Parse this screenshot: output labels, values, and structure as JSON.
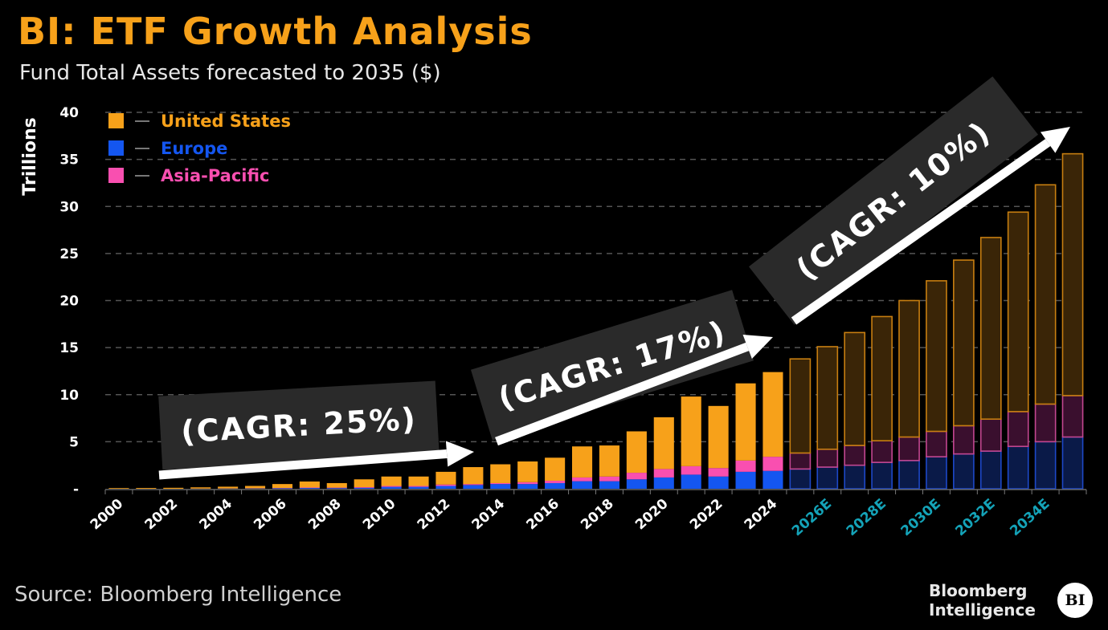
{
  "header": {
    "title": "BI: ETF Growth Analysis",
    "subtitle": "Fund Total Assets forecasted to 2035 ($)"
  },
  "footer": {
    "source": "Source: Bloomberg Intelligence",
    "logo_line1": "Bloomberg",
    "logo_line2": "Intelligence",
    "logo_badge": "BI"
  },
  "chart_data": {
    "type": "bar",
    "stacked": true,
    "title": "BI: ETF Growth Analysis",
    "subtitle": "Fund Total Assets forecasted to 2035 ($)",
    "ylabel": "Trillions",
    "ylim": [
      0,
      40
    ],
    "yticks": [
      {
        "v": 0,
        "label": "-"
      },
      {
        "v": 5,
        "label": "5"
      },
      {
        "v": 10,
        "label": "10"
      },
      {
        "v": 15,
        "label": "15"
      },
      {
        "v": 20,
        "label": "20"
      },
      {
        "v": 25,
        "label": "25"
      },
      {
        "v": 30,
        "label": "30"
      },
      {
        "v": 35,
        "label": "35"
      },
      {
        "v": 40,
        "label": "40"
      }
    ],
    "grid": true,
    "legend_position": "top-left",
    "categories": [
      "2000",
      "2001",
      "2002",
      "2003",
      "2004",
      "2005",
      "2006",
      "2007",
      "2008",
      "2009",
      "2010",
      "2011",
      "2012",
      "2013",
      "2014",
      "2015",
      "2016",
      "2017",
      "2018",
      "2019",
      "2020",
      "2021",
      "2022",
      "2023",
      "2024",
      "2025E",
      "2026E",
      "2027E",
      "2028E",
      "2029E",
      "2030E",
      "2031E",
      "2032E",
      "2033E",
      "2034E",
      "2035E"
    ],
    "xtick_labels": [
      "2000",
      "2002",
      "2004",
      "2006",
      "2008",
      "2010",
      "2012",
      "2014",
      "2016",
      "2018",
      "2020",
      "2022",
      "2024",
      "2026E",
      "2028E",
      "2030E",
      "2032E",
      "2034E"
    ],
    "forecast_from": "2025E",
    "series": [
      {
        "name": "Europe",
        "color": "#1456f0",
        "forecast_fill": "#0a1a48",
        "forecast_stroke": "#1d48c8",
        "values": [
          0,
          0,
          0,
          0.01,
          0.02,
          0.03,
          0.05,
          0.08,
          0.07,
          0.1,
          0.2,
          0.2,
          0.3,
          0.4,
          0.5,
          0.5,
          0.6,
          0.8,
          0.8,
          1.0,
          1.2,
          1.5,
          1.3,
          1.8,
          1.9,
          2.1,
          2.3,
          2.5,
          2.8,
          3.0,
          3.4,
          3.7,
          4.0,
          4.5,
          5.0,
          5.5
        ]
      },
      {
        "name": "Asia-Pacific",
        "color": "#f94fb0",
        "forecast_fill": "#3a0f2e",
        "forecast_stroke": "#c24690",
        "values": [
          0,
          0,
          0,
          0.01,
          0.01,
          0.02,
          0.03,
          0.05,
          0.05,
          0.07,
          0.1,
          0.1,
          0.15,
          0.1,
          0.1,
          0.2,
          0.25,
          0.4,
          0.5,
          0.7,
          0.9,
          0.9,
          0.9,
          1.2,
          1.5,
          1.7,
          1.9,
          2.1,
          2.3,
          2.5,
          2.7,
          3.0,
          3.4,
          3.7,
          4.0,
          4.4
        ]
      },
      {
        "name": "United States",
        "color": "#f7a11a",
        "forecast_fill": "#3a2507",
        "forecast_stroke": "#c77e10",
        "values": [
          0.07,
          0.08,
          0.1,
          0.13,
          0.19,
          0.25,
          0.42,
          0.64,
          0.48,
          0.83,
          1.0,
          1.0,
          1.35,
          1.8,
          2.0,
          2.2,
          2.45,
          3.3,
          3.3,
          4.4,
          5.5,
          7.4,
          6.6,
          8.2,
          9.0,
          10.0,
          10.9,
          12.0,
          13.2,
          14.5,
          16.0,
          17.6,
          19.3,
          21.2,
          23.3,
          25.7
        ]
      }
    ],
    "legend": [
      {
        "name": "United States",
        "color": "#f7a11a"
      },
      {
        "name": "Europe",
        "color": "#1456f0"
      },
      {
        "name": "Asia-Pacific",
        "color": "#f94fb0"
      }
    ],
    "annotations": [
      "(CAGR: 25%)",
      "(CAGR: 17%)",
      "(CAGR: 10%)"
    ],
    "colors": {
      "background": "#000000",
      "historical_tick": "#ffffff",
      "forecast_tick": "#14a3b8",
      "grid": "#555555",
      "annotation_box": "#2a2a2a"
    }
  }
}
